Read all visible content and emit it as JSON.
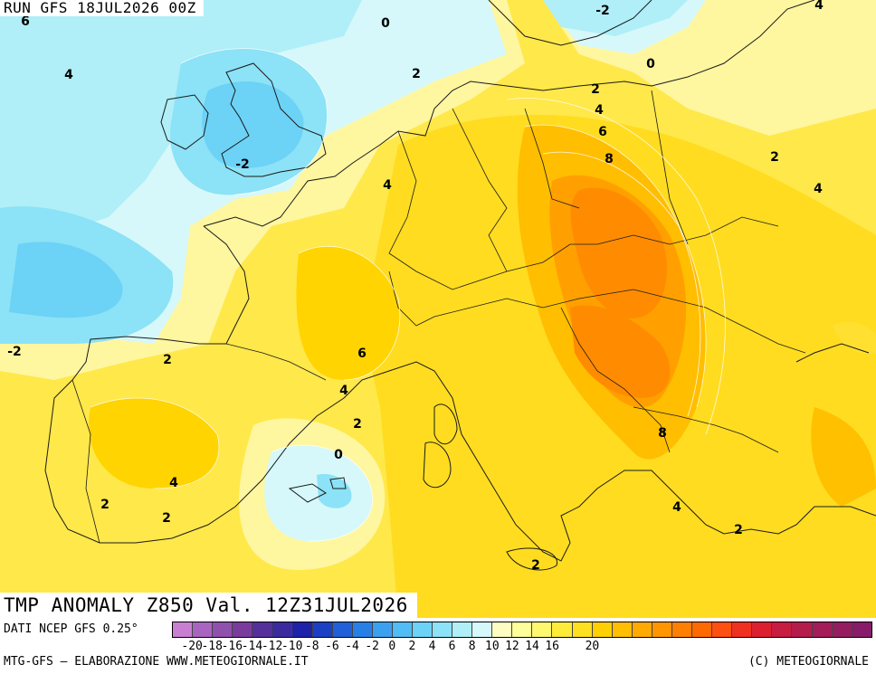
{
  "header": {
    "run_label": "RUN GFS 18JUL2026 00Z",
    "title": "TMP ANOMALY Z850 Val. 12Z31JUL2026"
  },
  "footer": {
    "dati": "DATI NCEP GFS 0.25°",
    "elaborazione": "MTG-GFS – ELABORAZIONE WWW.METEOGIORNALE.IT",
    "copyright": "(C) METEOGIORNALE"
  },
  "colorbar": {
    "swatches": [
      "#c87fd2",
      "#a864c0",
      "#9050ae",
      "#7a3c9c",
      "#55309a",
      "#3a2a9e",
      "#1e22a8",
      "#1c40c4",
      "#2060d8",
      "#2880e6",
      "#3ca0f0",
      "#52bcf4",
      "#6cd2f6",
      "#8ce2f6",
      "#b0eef8",
      "#d6f8fa",
      "#fdfdc2",
      "#fefe9a",
      "#fef870",
      "#ffec38",
      "#ffe020",
      "#ffd000",
      "#ffbe00",
      "#ffaa00",
      "#ff9600",
      "#ff8000",
      "#ff6a00",
      "#fe5010",
      "#f03020",
      "#dc2030",
      "#c81c40",
      "#b41c4c",
      "#a41c58",
      "#961c60",
      "#881c68"
    ],
    "tick_labels": [
      {
        "v": "-20",
        "i": 1
      },
      {
        "v": "-18",
        "i": 2
      },
      {
        "v": "-16",
        "i": 3
      },
      {
        "v": "-14",
        "i": 4
      },
      {
        "v": "-12",
        "i": 5
      },
      {
        "v": "-10",
        "i": 6
      },
      {
        "v": "-8",
        "i": 7
      },
      {
        "v": "-6",
        "i": 8
      },
      {
        "v": "-4",
        "i": 9
      },
      {
        "v": "-2",
        "i": 10
      },
      {
        "v": "0",
        "i": 11
      },
      {
        "v": "2",
        "i": 12
      },
      {
        "v": "4",
        "i": 13
      },
      {
        "v": "6",
        "i": 14
      },
      {
        "v": "8",
        "i": 15
      },
      {
        "v": "10",
        "i": 16
      },
      {
        "v": "12",
        "i": 17
      },
      {
        "v": "14",
        "i": 18
      },
      {
        "v": "16",
        "i": 19
      },
      {
        "v": "20",
        "i": 21
      }
    ]
  },
  "contour_labels": [
    "6",
    "4",
    "0",
    "-2",
    "4",
    "2",
    "0",
    "2",
    "4",
    "6",
    "8",
    "2",
    "4",
    "-2",
    "4",
    "-2",
    "2",
    "6",
    "4",
    "2",
    "0",
    "8",
    "4",
    "2",
    "4",
    "2",
    "2",
    "2"
  ],
  "colors": {
    "sea_cold": "#9cf0fa",
    "cold_core": "#56d8ec",
    "warm": "#ffd400",
    "hot": "#ff9400",
    "border": "#1a1a1a"
  }
}
